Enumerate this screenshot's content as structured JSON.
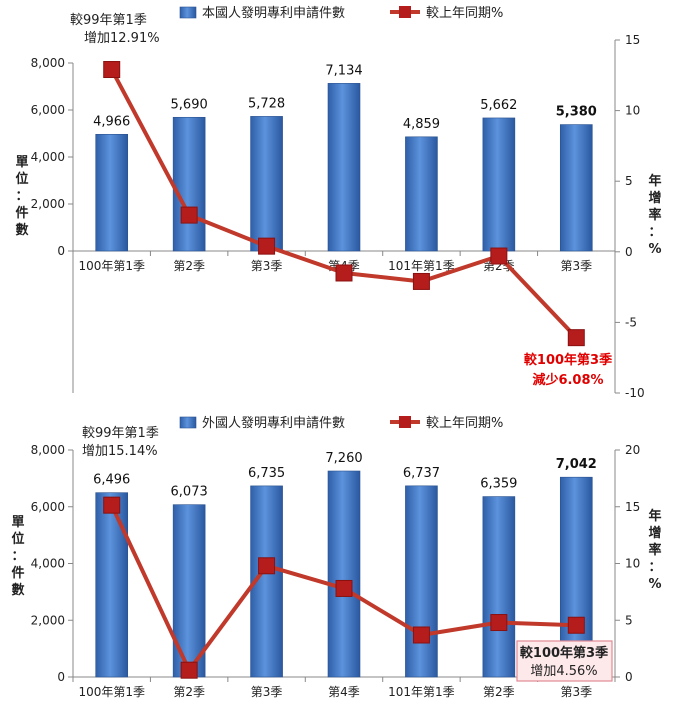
{
  "chart_data": [
    {
      "type": "bar+line",
      "legend": [
        "本國人發明專利申請件數",
        "較上年同期%"
      ],
      "legend_position": "top",
      "categories": [
        "100年第1季",
        "第2季",
        "第3季",
        "第4季",
        "101年第1季",
        "第2季",
        "第3季"
      ],
      "bar_values": [
        4966,
        5690,
        5728,
        7134,
        4859,
        5662,
        5380
      ],
      "bar_labels": [
        "4,966",
        "5,690",
        "5,728",
        "7,134",
        "4,859",
        "5,662",
        "5,380"
      ],
      "line_values": [
        12.91,
        2.6,
        0.4,
        -1.5,
        -2.1,
        -0.3,
        -6.08
      ],
      "y_left": {
        "min": 0,
        "max": 8000,
        "ticks": [
          "0",
          "2,000",
          "4,000",
          "6,000",
          "8,000"
        ],
        "title": [
          "單",
          "位",
          "：",
          "件",
          "數"
        ]
      },
      "y_right": {
        "min": -10,
        "max": 15,
        "ticks": [
          "15",
          "10",
          "5",
          "0",
          "-5",
          "-10"
        ],
        "title": [
          "年",
          "增",
          "率",
          "：",
          "%"
        ]
      },
      "annotations": {
        "first": [
          "較99年第1季",
          "增加12.91%"
        ],
        "last": [
          "較100年第3季",
          "減少6.08%"
        ]
      },
      "colors": {
        "bar": "#3a74c4",
        "line": "#c0392b",
        "marker": "#b51c1c",
        "last_annotation": "#e00000"
      }
    },
    {
      "type": "bar+line",
      "legend": [
        "外國人發明專利申請件數",
        "較上年同期%"
      ],
      "legend_position": "top",
      "categories": [
        "100年第1季",
        "第2季",
        "第3季",
        "第4季",
        "101年第1季",
        "第2季",
        "第3季"
      ],
      "bar_values": [
        6496,
        6073,
        6735,
        7260,
        6737,
        6359,
        7042
      ],
      "bar_labels": [
        "6,496",
        "6,073",
        "6,735",
        "7,260",
        "6,737",
        "6,359",
        "7,042"
      ],
      "line_values": [
        15.14,
        0.6,
        9.8,
        7.8,
        3.7,
        4.8,
        4.56
      ],
      "y_left": {
        "min": 0,
        "max": 8000,
        "ticks": [
          "0",
          "2,000",
          "4,000",
          "6,000",
          "8,000"
        ],
        "title": [
          "單",
          "位",
          "：",
          "件",
          "數"
        ]
      },
      "y_right": {
        "min": 0,
        "max": 20,
        "ticks": [
          "20",
          "15",
          "10",
          "5",
          "0"
        ],
        "title": [
          "年",
          "增",
          "率",
          "：",
          "%"
        ]
      },
      "annotations": {
        "first": [
          "較99年第1季",
          "增加15.14%"
        ],
        "last": [
          "較100年第3季",
          "增加4.56%"
        ]
      },
      "colors": {
        "bar": "#3a74c4",
        "line": "#c0392b",
        "marker": "#b51c1c"
      }
    }
  ]
}
